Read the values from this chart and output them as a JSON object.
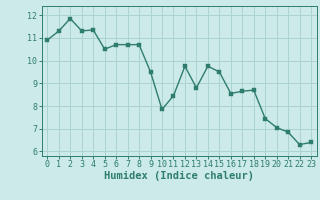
{
  "x": [
    0,
    1,
    2,
    3,
    4,
    5,
    6,
    7,
    8,
    9,
    10,
    11,
    12,
    13,
    14,
    15,
    16,
    17,
    18,
    19,
    20,
    21,
    22,
    23
  ],
  "y": [
    10.9,
    11.3,
    11.85,
    11.3,
    11.35,
    10.5,
    10.7,
    10.7,
    10.7,
    9.5,
    7.85,
    8.45,
    9.75,
    8.8,
    9.75,
    9.5,
    8.55,
    8.65,
    8.7,
    7.45,
    7.05,
    6.85,
    6.3,
    6.4
  ],
  "line_color": "#2e7d6e",
  "marker": "s",
  "marker_size": 2.5,
  "line_width": 1.0,
  "bg_color": "#cceae7",
  "grid_color": "#aad4d0",
  "xlabel": "Humidex (Indice chaleur)",
  "xlabel_fontsize": 7.5,
  "tick_fontsize": 6.0,
  "ylim": [
    5.8,
    12.4
  ],
  "xlim": [
    -0.5,
    23.5
  ],
  "yticks": [
    6,
    7,
    8,
    9,
    10,
    11,
    12
  ],
  "xticks": [
    0,
    1,
    2,
    3,
    4,
    5,
    6,
    7,
    8,
    9,
    10,
    11,
    12,
    13,
    14,
    15,
    16,
    17,
    18,
    19,
    20,
    21,
    22,
    23
  ]
}
